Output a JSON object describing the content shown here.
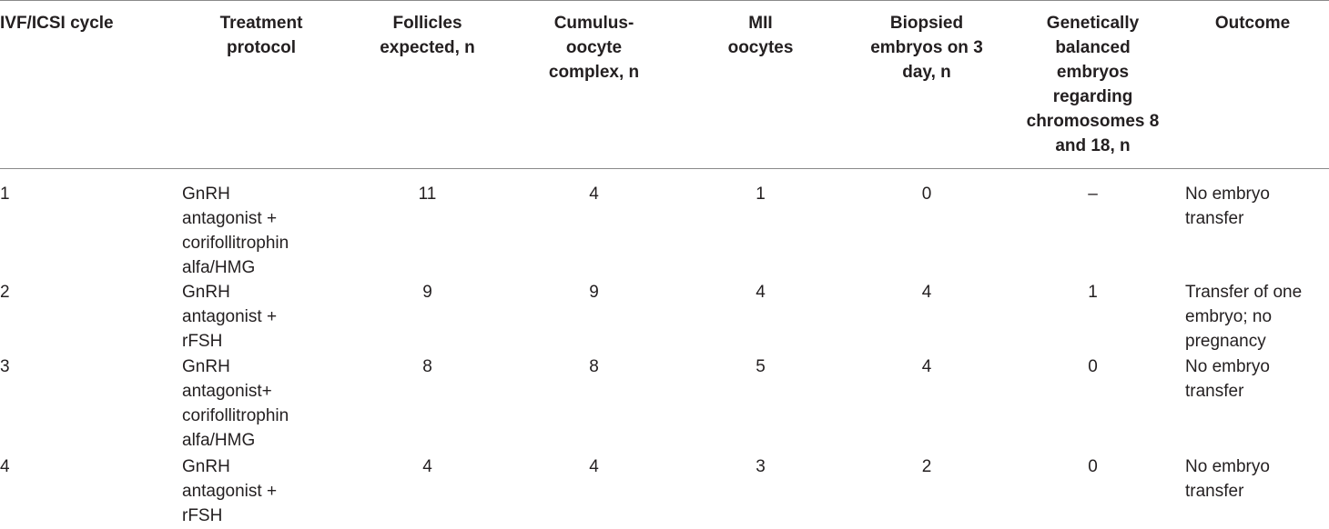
{
  "table": {
    "headers": [
      "IVF/ICSI cycle",
      "Treatment protocol",
      "Follicles expected, n",
      "Cumulus-oocyte complex, n",
      "MII oocytes",
      "Biopsied embryos on 3 day, n",
      "Genetically balanced embryos regarding chromosomes 8 and 18, n",
      "Outcome"
    ],
    "rows": [
      {
        "cycle": "1",
        "protocol": "GnRH antagonist + corifollitrophin alfa/HMG",
        "follicles": "11",
        "coc": "4",
        "mii": "1",
        "biopsied": "0",
        "balanced": "–",
        "outcome": "No embryo transfer"
      },
      {
        "cycle": "2",
        "protocol": "GnRH antagonist + rFSH",
        "follicles": "9",
        "coc": "9",
        "mii": "4",
        "biopsied": "4",
        "balanced": "1",
        "outcome": "Transfer of one embryo; no pregnancy"
      },
      {
        "cycle": "3",
        "protocol": "GnRH antagonist+ corifollitrophin alfa/HMG",
        "follicles": "8",
        "coc": "8",
        "mii": "5",
        "biopsied": "4",
        "balanced": "0",
        "outcome": "No embryo transfer"
      },
      {
        "cycle": "4",
        "protocol": "GnRH antagonist + rFSH",
        "follicles": "4",
        "coc": "4",
        "mii": "3",
        "biopsied": "2",
        "balanced": "0",
        "outcome": "No embryo transfer"
      }
    ]
  }
}
